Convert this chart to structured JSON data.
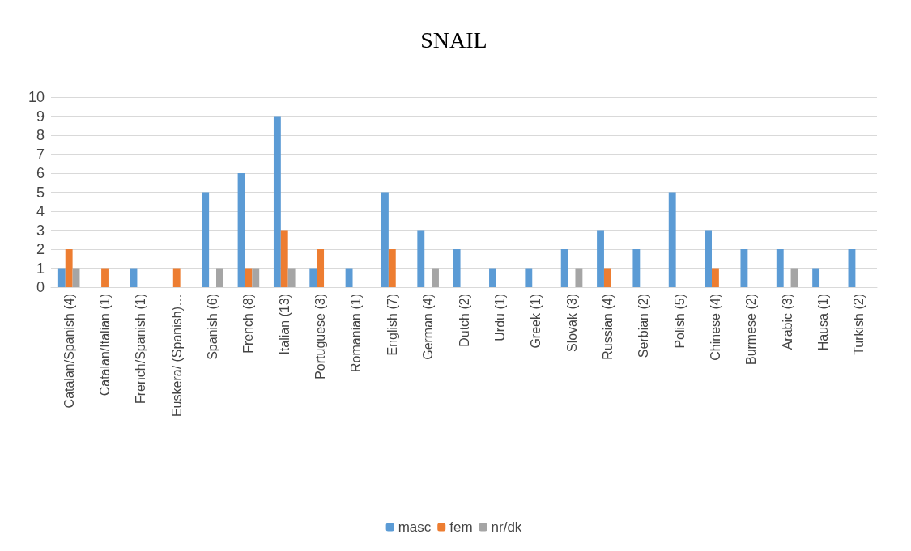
{
  "chart_data": {
    "type": "bar",
    "title": "SNAIL",
    "categories": [
      "Catalan/Spanish (4)",
      "Catalan/Italian (1)",
      "French/Spanish (1)",
      "Euskera/ (Spanish)…",
      "Spanish (6)",
      "French (8)",
      "Italian (13)",
      "Portuguese (3)",
      "Romanian (1)",
      "English (7)",
      "German (4)",
      "Dutch (2)",
      "Urdu (1)",
      "Greek (1)",
      "Slovak (3)",
      "Russian (4)",
      "Serbian (2)",
      "Polish (5)",
      "Chinese (4)",
      "Burmese (2)",
      "Arabic (3)",
      "Hausa (1)",
      "Turkish (2)"
    ],
    "series": [
      {
        "name": "masc",
        "color": "#5b9bd5",
        "values": [
          1,
          0,
          1,
          0,
          5,
          6,
          9,
          1,
          1,
          5,
          3,
          2,
          1,
          1,
          2,
          3,
          2,
          5,
          3,
          2,
          2,
          1,
          2
        ]
      },
      {
        "name": "fem",
        "color": "#ed7d31",
        "values": [
          2,
          1,
          0,
          1,
          0,
          1,
          3,
          2,
          0,
          2,
          0,
          0,
          0,
          0,
          0,
          1,
          0,
          0,
          1,
          0,
          0,
          0,
          0
        ]
      },
      {
        "name": "nr/dk",
        "color": "#a5a5a5",
        "values": [
          1,
          0,
          0,
          0,
          1,
          1,
          1,
          0,
          0,
          0,
          1,
          0,
          0,
          0,
          1,
          0,
          0,
          0,
          0,
          0,
          1,
          0,
          0
        ]
      }
    ],
    "ylim": [
      0,
      10
    ],
    "yticks": [
      0,
      1,
      2,
      3,
      4,
      5,
      6,
      7,
      8,
      9,
      10
    ],
    "grid": "y",
    "legend": "bottom"
  }
}
